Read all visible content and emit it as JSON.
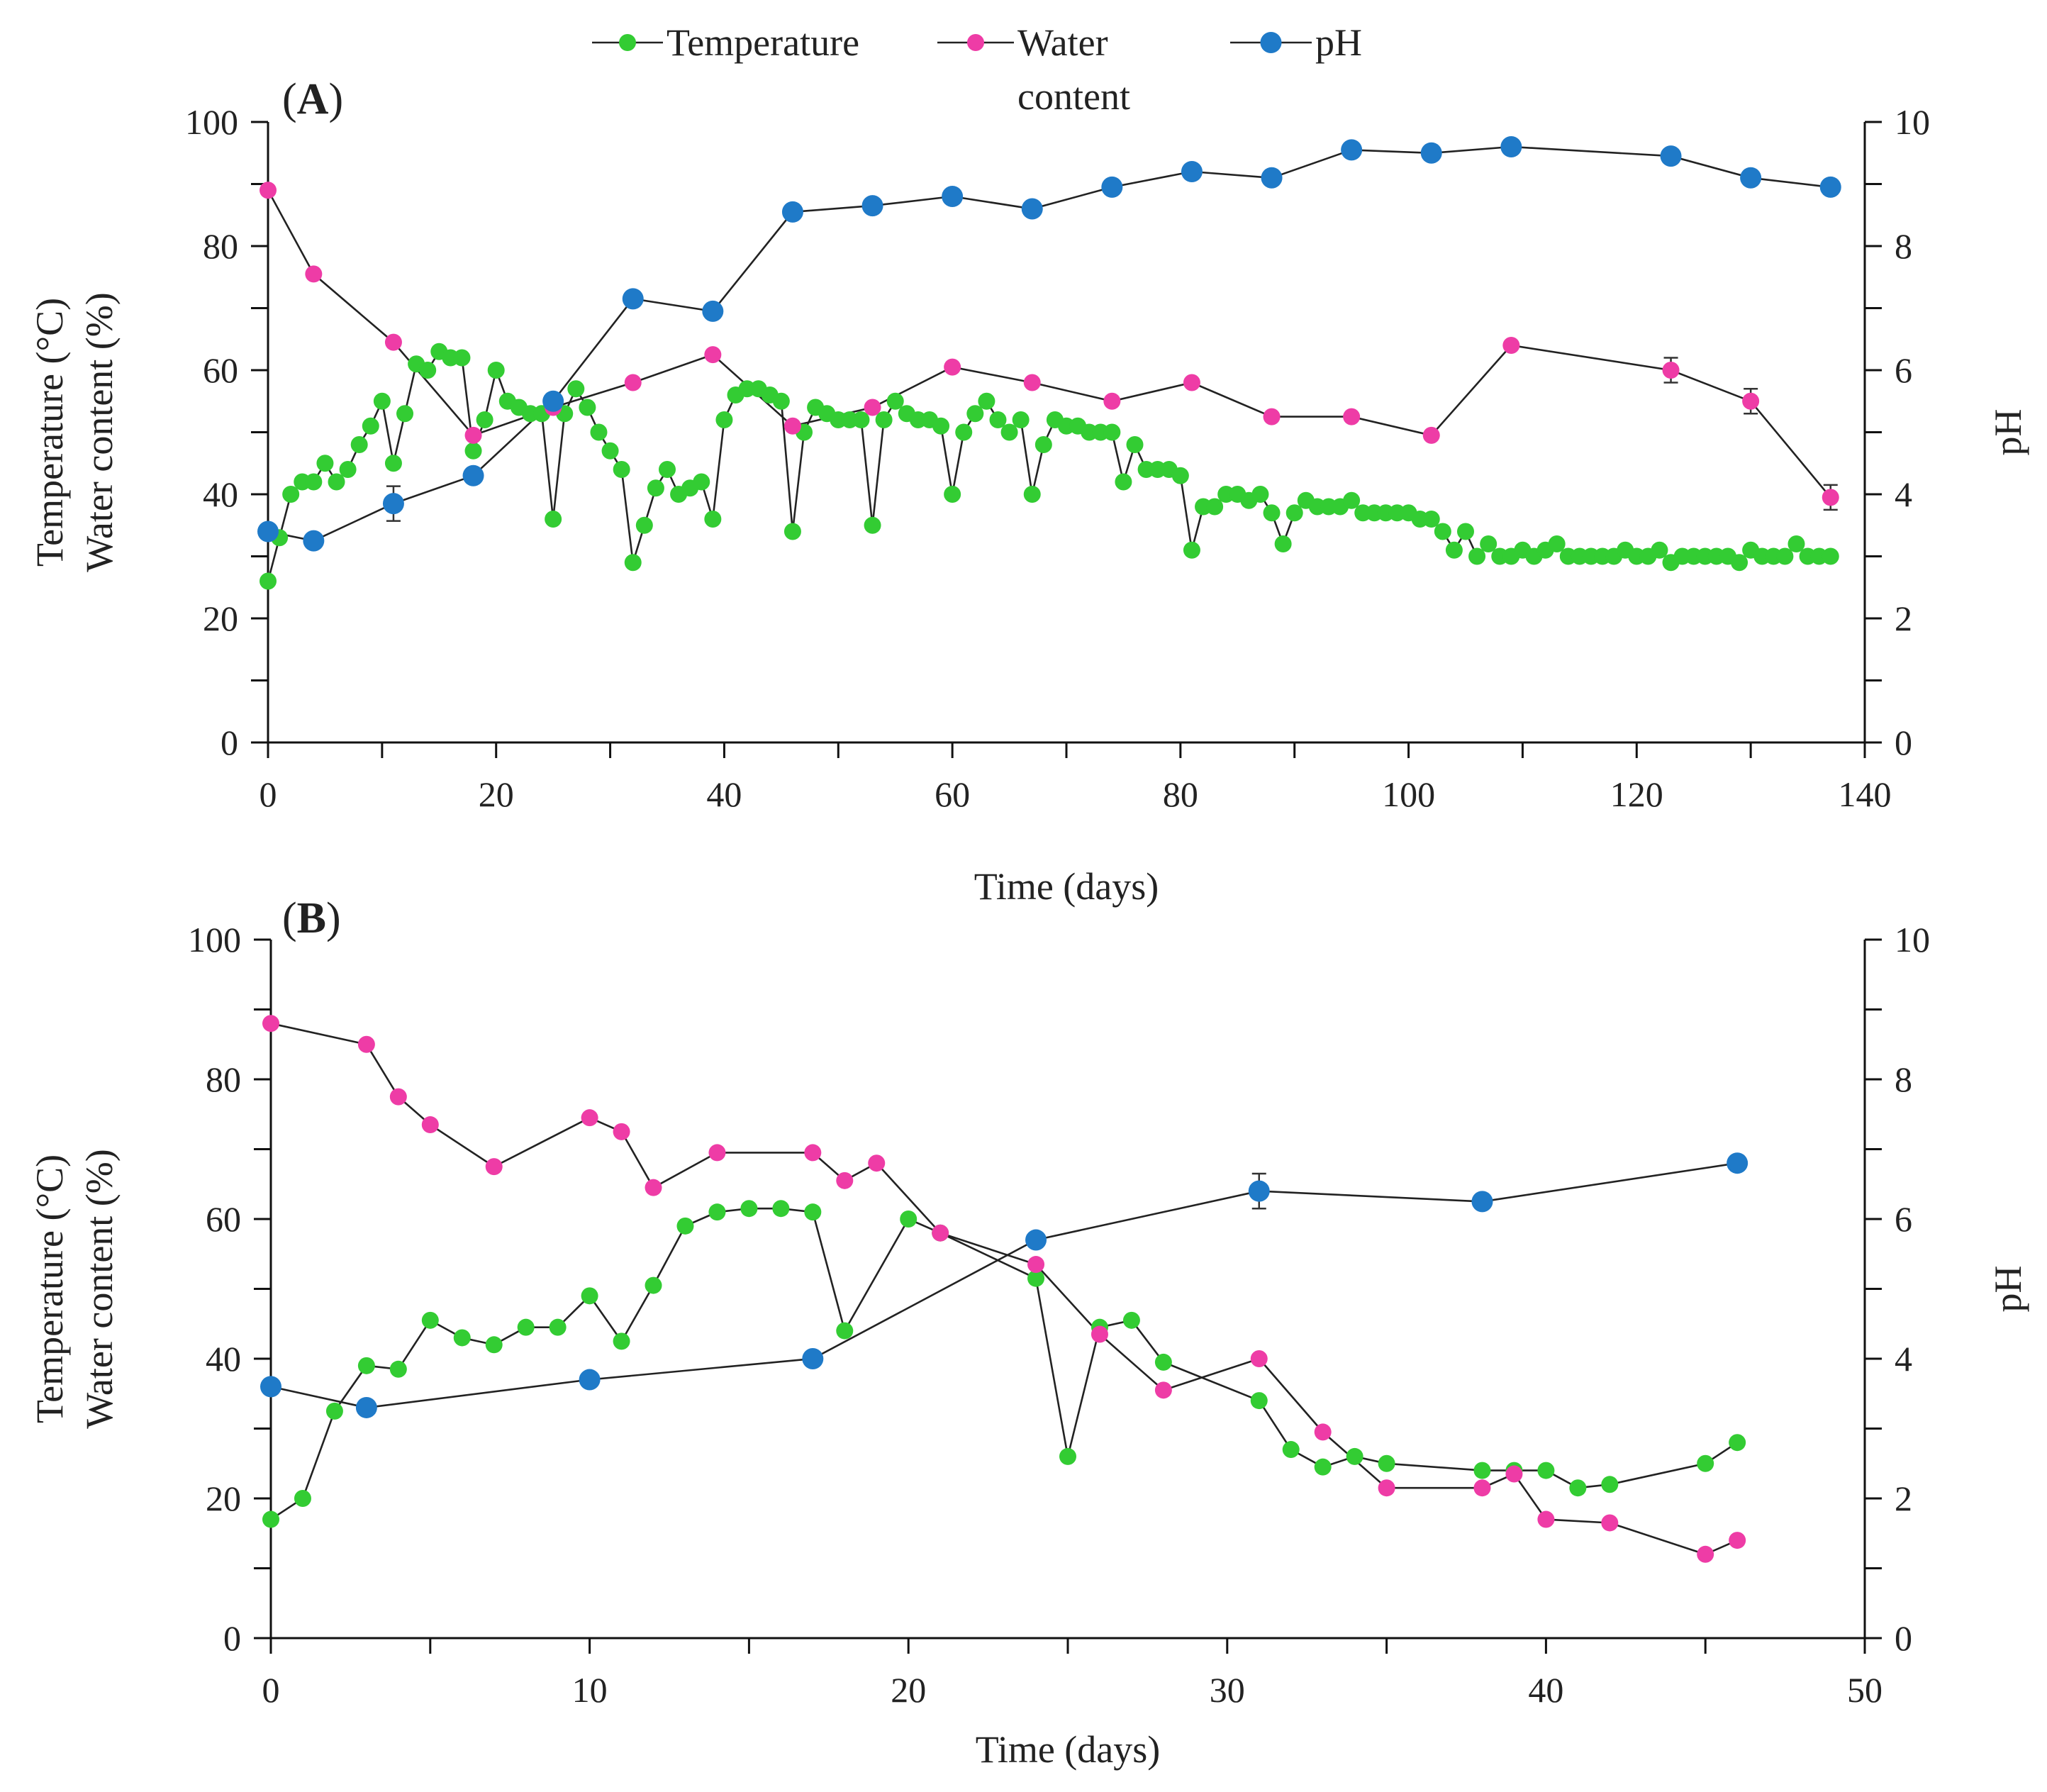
{
  "legend": {
    "entries": [
      {
        "name": "Temperature",
        "label_lines": [
          "Temperature"
        ],
        "color": "#33cc33"
      },
      {
        "name": "Water content",
        "label_lines": [
          "Water",
          "content"
        ],
        "color": "#ee3ca6"
      },
      {
        "name": "pH",
        "label_lines": [
          "pH"
        ],
        "color": "#1f7ac8"
      }
    ]
  },
  "colors": {
    "temperature": "#33cc33",
    "water": "#ee3ca6",
    "ph": "#1f7ac8",
    "axis": "#111111",
    "line": "#222222"
  },
  "chart_data": [
    {
      "type": "line",
      "panel_label": "(A)",
      "xlabel": "Time (days)",
      "ylabel_lines": [
        "Temperature (°C)",
        "Water content (%)"
      ],
      "y2label": "pH",
      "xlim": [
        0,
        140
      ],
      "ylim": [
        0,
        100
      ],
      "y2lim": [
        0,
        10
      ],
      "xticks": [
        0,
        20,
        40,
        60,
        80,
        100,
        120,
        140
      ],
      "yticks": [
        0,
        20,
        40,
        60,
        80,
        100
      ],
      "y2ticks": [
        0,
        2,
        4,
        6,
        8,
        10
      ],
      "series": [
        {
          "name": "Temperature",
          "axis": "left",
          "color_key": "temperature",
          "x": [
            0,
            1,
            2,
            3,
            4,
            5,
            6,
            7,
            8,
            9,
            10,
            11,
            12,
            13,
            14,
            15,
            16,
            17,
            18,
            19,
            20,
            21,
            22,
            23,
            24,
            25,
            26,
            27,
            28,
            29,
            30,
            31,
            32,
            33,
            34,
            35,
            36,
            37,
            38,
            39,
            40,
            41,
            42,
            43,
            44,
            45,
            46,
            47,
            48,
            49,
            50,
            51,
            52,
            53,
            54,
            55,
            56,
            57,
            58,
            59,
            60,
            61,
            62,
            63,
            64,
            65,
            66,
            67,
            68,
            69,
            70,
            71,
            72,
            73,
            74,
            75,
            76,
            77,
            78,
            79,
            80,
            81,
            82,
            83,
            84,
            85,
            86,
            87,
            88,
            89,
            90,
            91,
            92,
            93,
            94,
            95,
            96,
            97,
            98,
            99,
            100,
            101,
            102,
            103,
            104,
            105,
            106,
            107,
            108,
            109,
            110,
            111,
            112,
            113,
            114,
            115,
            116,
            117,
            118,
            119,
            120,
            121,
            122,
            123,
            124,
            125,
            126,
            127,
            128,
            129,
            130,
            131,
            132,
            133,
            134,
            135,
            136,
            137
          ],
          "y": [
            26,
            33,
            40,
            42,
            42,
            45,
            42,
            44,
            48,
            51,
            55,
            45,
            53,
            61,
            60,
            63,
            62,
            62,
            47,
            52,
            60,
            55,
            54,
            53,
            53,
            36,
            53,
            57,
            54,
            50,
            47,
            44,
            29,
            35,
            41,
            44,
            40,
            41,
            42,
            36,
            52,
            56,
            57,
            57,
            56,
            55,
            34,
            50,
            54,
            53,
            52,
            52,
            52,
            35,
            52,
            55,
            53,
            52,
            52,
            51,
            40,
            50,
            53,
            55,
            52,
            50,
            52,
            40,
            48,
            52,
            51,
            51,
            50,
            50,
            50,
            42,
            48,
            44,
            44,
            44,
            43,
            31,
            38,
            38,
            40,
            40,
            39,
            40,
            37,
            32,
            37,
            39,
            38,
            38,
            38,
            39,
            37,
            37,
            37,
            37,
            37,
            36,
            36,
            34,
            31,
            34,
            30,
            32,
            30,
            30,
            31,
            30,
            31,
            32,
            30,
            30,
            30,
            30,
            30,
            31,
            30,
            30,
            31,
            29,
            30,
            30,
            30,
            30,
            30,
            29,
            31,
            30,
            30,
            30,
            32,
            30,
            30,
            30
          ]
        },
        {
          "name": "Water content",
          "axis": "left",
          "color_key": "water",
          "x": [
            0,
            4,
            11,
            18,
            25,
            32,
            39,
            46,
            53,
            60,
            67,
            74,
            81,
            88,
            95,
            102,
            109,
            123,
            130,
            137
          ],
          "y": [
            89,
            75.5,
            64.5,
            49.5,
            54,
            58,
            62.5,
            51,
            54,
            60.5,
            58,
            55,
            58,
            52.5,
            52.5,
            49.5,
            64,
            60,
            55,
            39.5
          ],
          "err": [
            0,
            0,
            0,
            0,
            0,
            0,
            0,
            0,
            0,
            0,
            0,
            0,
            0,
            0,
            0,
            0,
            0,
            2,
            2,
            2
          ]
        },
        {
          "name": "pH",
          "axis": "right",
          "color_key": "ph",
          "x": [
            0,
            4,
            11,
            18,
            25,
            32,
            39,
            46,
            53,
            60,
            67,
            74,
            81,
            88,
            95,
            102,
            109,
            123,
            130,
            137
          ],
          "y": [
            3.4,
            3.25,
            3.85,
            4.3,
            5.5,
            7.15,
            6.95,
            8.55,
            8.65,
            8.8,
            8.6,
            8.95,
            9.2,
            9.1,
            9.55,
            9.5,
            9.6,
            9.45,
            9.1,
            8.95
          ],
          "err": [
            0,
            0,
            0.28,
            0,
            0,
            0,
            0,
            0,
            0,
            0,
            0,
            0,
            0,
            0,
            0,
            0,
            0,
            0,
            0,
            0
          ]
        }
      ]
    },
    {
      "type": "line",
      "panel_label": "(B)",
      "xlabel": "Time (days)",
      "ylabel_lines": [
        "Temperature (°C)",
        "Water content (%)"
      ],
      "y2label": "pH",
      "xlim": [
        0,
        50
      ],
      "ylim": [
        0,
        100
      ],
      "y2lim": [
        0,
        10
      ],
      "xticks": [
        0,
        10,
        20,
        30,
        40,
        50
      ],
      "yticks": [
        0,
        20,
        40,
        60,
        80,
        100
      ],
      "y2ticks": [
        0,
        2,
        4,
        6,
        8,
        10
      ],
      "series": [
        {
          "name": "Temperature",
          "axis": "left",
          "color_key": "temperature",
          "x": [
            0,
            1,
            2,
            3,
            4,
            5,
            6,
            7,
            8,
            9,
            10,
            11,
            12,
            13,
            14,
            15,
            16,
            17,
            18,
            20,
            21,
            24,
            25,
            26,
            27,
            28,
            31,
            32,
            33,
            34,
            35,
            38,
            39,
            40,
            41,
            42,
            45,
            46
          ],
          "y": [
            17,
            20,
            32.5,
            39,
            38.5,
            45.5,
            43,
            42,
            44.5,
            44.5,
            49,
            42.5,
            50.5,
            59,
            61,
            61.5,
            61.5,
            61,
            44,
            60,
            58,
            51.5,
            26,
            44.5,
            45.5,
            39.5,
            34,
            27,
            24.5,
            26,
            25,
            24,
            24,
            24,
            21.5,
            22,
            25,
            28
          ]
        },
        {
          "name": "Water content",
          "axis": "left",
          "color_key": "water",
          "x": [
            0,
            3,
            4,
            5,
            7,
            10,
            11,
            12,
            14,
            17,
            18,
            19,
            21,
            24,
            26,
            28,
            31,
            33,
            35,
            38,
            39,
            40,
            42,
            45,
            46
          ],
          "y": [
            88,
            85,
            77.5,
            73.5,
            67.5,
            74.5,
            72.5,
            64.5,
            69.5,
            69.5,
            65.5,
            68,
            58,
            53.5,
            43.5,
            35.5,
            40,
            29.5,
            21.5,
            21.5,
            23.5,
            17,
            16.5,
            12,
            14
          ]
        },
        {
          "name": "pH",
          "axis": "right",
          "color_key": "ph",
          "x": [
            0,
            3,
            10,
            17,
            24,
            31,
            38,
            46
          ],
          "y": [
            3.6,
            3.3,
            3.7,
            4.0,
            5.7,
            6.4,
            6.25,
            6.8
          ],
          "err": [
            0,
            0,
            0,
            0,
            0,
            0.25,
            0,
            0
          ]
        }
      ]
    }
  ]
}
